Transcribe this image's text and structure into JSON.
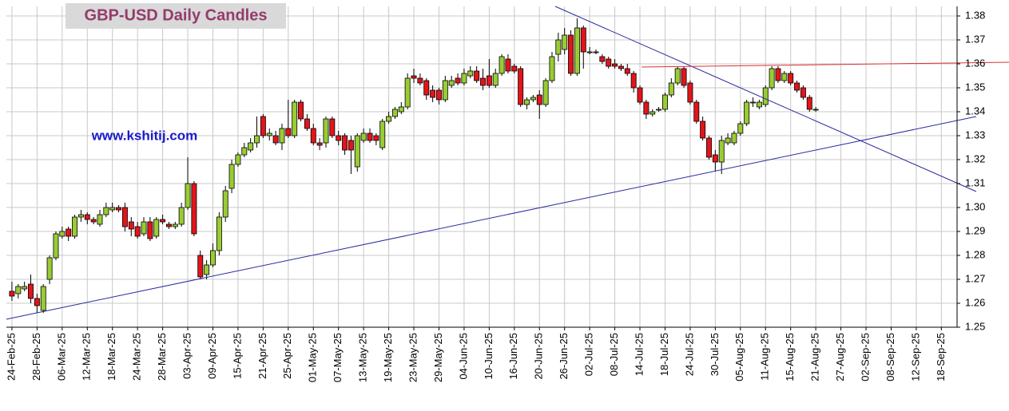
{
  "chart_data": {
    "type": "candlestick",
    "title": "GBP-USD Daily Candles",
    "watermark": "www.kshitij.com",
    "categories": [
      "24-Feb-25",
      null,
      null,
      null,
      "28-Feb-25",
      null,
      null,
      null,
      "06-Mar-25",
      null,
      null,
      null,
      "12-Mar-25",
      null,
      null,
      null,
      "18-Mar-25",
      null,
      null,
      null,
      "24-Mar-25",
      null,
      null,
      null,
      "28-Mar-25",
      null,
      null,
      null,
      "03-Apr-25",
      null,
      null,
      null,
      "09-Apr-25",
      null,
      null,
      null,
      "15-Apr-25",
      null,
      null,
      null,
      "21-Apr-25",
      null,
      null,
      null,
      "25-Apr-25",
      null,
      null,
      null,
      "01-May-25",
      null,
      null,
      null,
      "07-May-25",
      null,
      null,
      null,
      "13-May-25",
      null,
      null,
      null,
      "19-May-25",
      null,
      null,
      null,
      "23-May-25",
      null,
      null,
      null,
      "29-May-25",
      null,
      null,
      null,
      "04-Jun-25",
      null,
      null,
      null,
      "10-Jun-25",
      null,
      null,
      null,
      "16-Jun-25",
      null,
      null,
      null,
      "20-Jun-25",
      null,
      null,
      null,
      "26-Jun-25",
      null,
      null,
      null,
      "02-Jul-25",
      null,
      null,
      null,
      "08-Jul-25",
      null,
      null,
      null,
      "14-Jul-25",
      null,
      null,
      null,
      "18-Jul-25",
      null,
      null,
      null,
      "24-Jul-25",
      null,
      null,
      null,
      "30-Jul-25",
      null,
      null,
      null,
      "05-Aug-25",
      null,
      null,
      null,
      "11-Aug-25",
      null,
      null,
      null,
      "15-Aug-25",
      null,
      null,
      null,
      "21-Aug-25",
      null,
      null,
      null,
      "27-Aug-25",
      null,
      null,
      null,
      "02-Sep-25",
      null,
      null,
      null,
      "08-Sep-25",
      null,
      null,
      null,
      "12-Sep-25",
      null,
      null,
      null,
      "18-Sep-25",
      null,
      null
    ],
    "open": [
      1.265,
      1.264,
      1.266,
      1.268,
      1.262,
      1.257,
      1.27,
      1.279,
      1.288,
      1.291,
      1.288,
      1.296,
      1.297,
      1.295,
      1.293,
      1.297,
      1.299,
      1.3,
      1.3,
      1.294,
      1.292,
      1.289,
      1.294,
      1.288,
      1.295,
      1.293,
      1.292,
      1.293,
      1.3,
      1.31,
      1.28,
      1.272,
      1.276,
      1.282,
      1.296,
      1.308,
      1.318,
      1.322,
      1.324,
      1.327,
      1.338,
      1.33,
      1.33,
      1.327,
      1.333,
      1.33,
      1.344,
      1.337,
      1.333,
      1.327,
      1.327,
      1.337,
      1.33,
      1.33,
      1.328,
      1.317,
      1.328,
      1.331,
      1.33,
      1.325,
      1.336,
      1.338,
      1.34,
      1.342,
      1.355,
      1.354,
      1.353,
      1.349,
      1.349,
      1.345,
      1.351,
      1.354,
      1.352,
      1.355,
      1.357,
      1.354,
      1.355,
      1.351,
      1.356,
      1.362,
      1.359,
      1.358,
      1.343,
      1.345,
      1.347,
      1.343,
      1.353,
      1.364,
      1.366,
      1.372,
      1.356,
      1.375,
      1.365,
      1.365,
      1.363,
      1.362,
      1.36,
      1.359,
      1.358,
      1.356,
      1.35,
      1.344,
      1.339,
      1.341,
      1.341,
      1.347,
      1.352,
      1.358,
      1.352,
      1.344,
      1.336,
      1.329,
      1.322,
      1.319,
      1.327,
      1.327,
      1.331,
      1.335,
      1.344,
      1.342,
      1.343,
      1.35,
      1.358,
      1.353,
      1.356,
      1.352,
      1.35,
      1.346,
      1.341,
      null,
      null,
      null,
      null,
      null,
      null,
      null,
      null,
      null,
      null,
      null,
      null,
      null,
      null,
      null,
      null,
      null,
      null,
      null,
      null,
      null,
      null
    ],
    "high": [
      1.269,
      1.268,
      1.269,
      1.272,
      1.264,
      1.268,
      1.28,
      1.29,
      1.292,
      1.292,
      1.297,
      1.299,
      1.298,
      1.296,
      1.299,
      1.302,
      1.302,
      1.301,
      1.302,
      1.296,
      1.294,
      1.296,
      1.296,
      1.296,
      1.297,
      1.294,
      1.294,
      1.302,
      1.321,
      1.311,
      1.282,
      1.278,
      1.285,
      1.298,
      1.309,
      1.32,
      1.323,
      1.327,
      1.329,
      1.338,
      1.339,
      1.333,
      1.332,
      1.335,
      1.345,
      1.345,
      1.345,
      1.339,
      1.335,
      1.329,
      1.338,
      1.338,
      1.332,
      1.331,
      1.33,
      1.331,
      1.333,
      1.333,
      1.331,
      1.337,
      1.34,
      1.342,
      1.344,
      1.356,
      1.358,
      1.356,
      1.354,
      1.351,
      1.35,
      1.355,
      1.355,
      1.356,
      1.358,
      1.359,
      1.359,
      1.358,
      1.362,
      1.358,
      1.364,
      1.364,
      1.36,
      1.359,
      1.346,
      1.347,
      1.349,
      1.354,
      1.365,
      1.373,
      1.375,
      1.374,
      1.379,
      1.376,
      1.367,
      1.366,
      1.364,
      1.363,
      1.362,
      1.36,
      1.36,
      1.357,
      1.351,
      1.345,
      1.341,
      1.342,
      1.348,
      1.354,
      1.359,
      1.359,
      1.353,
      1.345,
      1.338,
      1.33,
      1.324,
      1.33,
      1.331,
      1.332,
      1.336,
      1.345,
      1.346,
      1.345,
      1.351,
      1.359,
      1.359,
      1.357,
      1.357,
      1.353,
      1.351,
      1.347,
      1.342,
      null,
      null,
      null,
      null,
      null,
      null,
      null,
      null,
      null,
      null,
      null,
      null,
      null,
      null,
      null,
      null,
      null,
      null,
      null,
      null,
      null,
      null
    ],
    "low": [
      1.261,
      1.262,
      1.265,
      1.26,
      1.256,
      1.256,
      1.268,
      1.278,
      1.287,
      1.286,
      1.287,
      1.294,
      1.293,
      1.293,
      1.292,
      1.296,
      1.298,
      1.298,
      1.29,
      1.288,
      1.287,
      1.288,
      1.286,
      1.287,
      1.293,
      1.291,
      1.291,
      1.292,
      1.299,
      1.288,
      1.27,
      1.27,
      1.275,
      1.28,
      1.294,
      1.306,
      1.317,
      1.321,
      1.323,
      1.325,
      1.329,
      1.328,
      1.326,
      1.324,
      1.329,
      1.329,
      1.336,
      1.332,
      1.326,
      1.324,
      1.325,
      1.329,
      1.326,
      1.322,
      1.314,
      1.315,
      1.327,
      1.327,
      1.326,
      1.324,
      1.335,
      1.337,
      1.339,
      1.341,
      1.352,
      1.351,
      1.345,
      1.344,
      1.343,
      1.344,
      1.35,
      1.351,
      1.351,
      1.354,
      1.352,
      1.349,
      1.35,
      1.35,
      1.355,
      1.356,
      1.356,
      1.342,
      1.341,
      1.344,
      1.337,
      1.342,
      1.352,
      1.361,
      1.364,
      1.355,
      1.355,
      1.358,
      1.364,
      1.364,
      1.36,
      1.358,
      1.358,
      1.357,
      1.355,
      1.348,
      1.343,
      1.337,
      1.338,
      1.34,
      1.34,
      1.346,
      1.351,
      1.35,
      1.343,
      1.335,
      1.328,
      1.32,
      1.315,
      1.314,
      1.326,
      1.326,
      1.33,
      1.334,
      1.342,
      1.341,
      1.342,
      1.349,
      1.352,
      1.352,
      1.351,
      1.348,
      1.345,
      1.34,
      1.34,
      null,
      null,
      null,
      null,
      null,
      null,
      null,
      null,
      null,
      null,
      null,
      null,
      null,
      null,
      null,
      null,
      null,
      null,
      null,
      null,
      null,
      null
    ],
    "close": [
      1.263,
      1.267,
      1.267,
      1.262,
      1.259,
      1.267,
      1.279,
      1.289,
      1.29,
      1.288,
      1.296,
      1.297,
      1.295,
      1.294,
      1.297,
      1.3,
      1.3,
      1.299,
      1.292,
      1.291,
      1.288,
      1.294,
      1.287,
      1.295,
      1.294,
      1.292,
      1.293,
      1.3,
      1.31,
      1.289,
      1.271,
      1.276,
      1.282,
      1.296,
      1.307,
      1.318,
      1.322,
      1.325,
      1.327,
      1.33,
      1.33,
      1.331,
      1.327,
      1.333,
      1.33,
      1.344,
      1.337,
      1.333,
      1.327,
      1.326,
      1.337,
      1.33,
      1.328,
      1.324,
      1.324,
      1.33,
      1.331,
      1.328,
      1.328,
      1.336,
      1.338,
      1.341,
      1.342,
      1.354,
      1.354,
      1.352,
      1.347,
      1.346,
      1.345,
      1.353,
      1.353,
      1.352,
      1.356,
      1.357,
      1.353,
      1.351,
      1.351,
      1.356,
      1.363,
      1.357,
      1.357,
      1.343,
      1.345,
      1.346,
      1.343,
      1.353,
      1.363,
      1.37,
      1.372,
      1.356,
      1.375,
      1.365,
      1.365,
      1.365,
      1.361,
      1.359,
      1.359,
      1.358,
      1.356,
      1.35,
      1.344,
      1.339,
      1.34,
      1.341,
      1.347,
      1.352,
      1.358,
      1.351,
      1.344,
      1.336,
      1.329,
      1.321,
      1.319,
      1.328,
      1.329,
      1.331,
      1.335,
      1.344,
      1.344,
      1.344,
      1.35,
      1.358,
      1.353,
      1.356,
      1.352,
      1.349,
      1.346,
      1.341,
      1.341,
      null,
      null,
      null,
      null,
      null,
      null,
      null,
      null,
      null,
      null,
      null,
      null,
      null,
      null,
      null,
      null,
      null,
      null,
      null,
      null,
      null,
      null
    ],
    "up_color": "#99cc33",
    "down_color": "#e3141b",
    "ylim": [
      1.25,
      1.38
    ],
    "yticks": [
      1.25,
      1.26,
      1.27,
      1.28,
      1.29,
      {
        "value": 1.3,
        "label": "1.30"
      },
      1.31,
      1.32,
      1.33,
      1.34,
      1.35,
      1.36,
      1.37,
      1.38
    ],
    "grid": true
  }
}
